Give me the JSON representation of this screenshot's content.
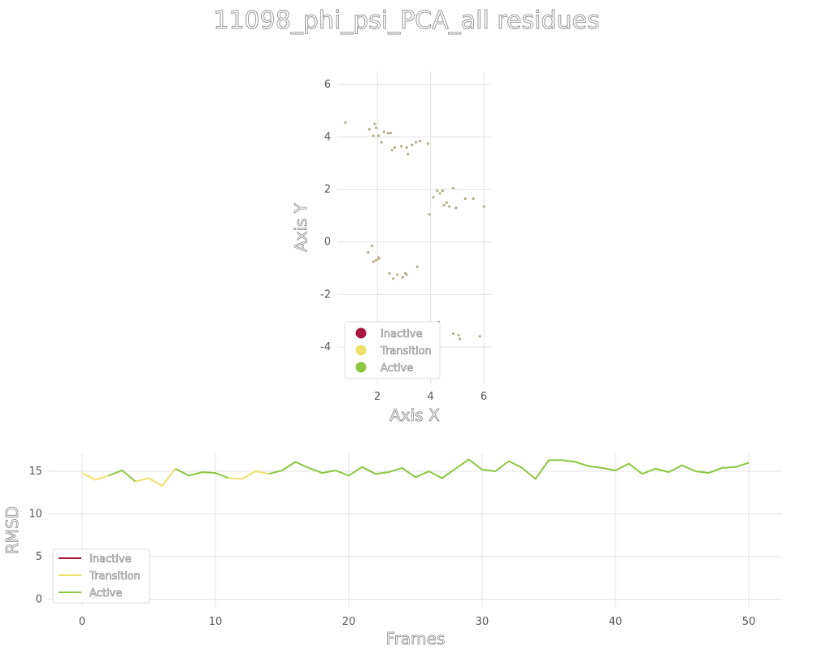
{
  "figure": {
    "title": "11098_phi_psi_PCA_all residues"
  },
  "colors": {
    "inactive": "#a8173f",
    "transition": "#ece06a",
    "active": "#8dc63f",
    "scatter_point": "#b7ab88"
  },
  "chart_data": [
    {
      "type": "scatter",
      "title": "",
      "xlabel": "Axis X",
      "ylabel": "Axis Y",
      "xlim": [
        0.5,
        6.3
      ],
      "ylim": [
        -5.4,
        6.5
      ],
      "xticks": [
        2,
        4,
        6
      ],
      "yticks": [
        -4,
        -2,
        0,
        2,
        4,
        6
      ],
      "grid": true,
      "legend": {
        "position": "lower-left",
        "entries": [
          "Inactive",
          "Transition",
          "Active"
        ]
      },
      "points": [
        [
          0.8,
          4.55
        ],
        [
          1.7,
          4.3
        ],
        [
          1.85,
          4.05
        ],
        [
          1.9,
          4.5
        ],
        [
          1.95,
          4.35
        ],
        [
          2.05,
          4.05
        ],
        [
          2.15,
          3.8
        ],
        [
          2.25,
          4.2
        ],
        [
          2.4,
          4.15
        ],
        [
          2.5,
          4.15
        ],
        [
          2.55,
          3.5
        ],
        [
          2.65,
          3.6
        ],
        [
          2.9,
          3.65
        ],
        [
          3.1,
          3.6
        ],
        [
          3.15,
          3.35
        ],
        [
          3.3,
          3.7
        ],
        [
          3.45,
          3.8
        ],
        [
          3.6,
          3.85
        ],
        [
          3.9,
          3.75
        ],
        [
          3.95,
          1.05
        ],
        [
          4.1,
          1.7
        ],
        [
          4.25,
          1.95
        ],
        [
          4.35,
          1.85
        ],
        [
          4.45,
          1.95
        ],
        [
          4.5,
          1.4
        ],
        [
          4.6,
          1.5
        ],
        [
          4.7,
          1.35
        ],
        [
          4.85,
          2.05
        ],
        [
          4.95,
          1.3
        ],
        [
          5.3,
          1.65
        ],
        [
          5.6,
          1.65
        ],
        [
          6.0,
          1.35
        ],
        [
          1.65,
          -0.4
        ],
        [
          1.8,
          -0.15
        ],
        [
          1.85,
          -0.75
        ],
        [
          1.95,
          -0.7
        ],
        [
          2.05,
          -0.6
        ],
        [
          2.05,
          -0.65
        ],
        [
          2.45,
          -1.2
        ],
        [
          2.6,
          -1.4
        ],
        [
          2.75,
          -1.25
        ],
        [
          2.95,
          -1.35
        ],
        [
          3.05,
          -1.2
        ],
        [
          3.1,
          -1.25
        ],
        [
          3.5,
          -0.95
        ],
        [
          4.05,
          -3.1
        ],
        [
          4.3,
          -3.05
        ],
        [
          4.85,
          -3.5
        ],
        [
          5.05,
          -3.55
        ],
        [
          5.1,
          -3.7
        ],
        [
          5.85,
          -3.6
        ]
      ]
    },
    {
      "type": "line",
      "title": "",
      "xlabel": "Frames",
      "ylabel": "RMSD",
      "xlim": [
        -2.5,
        52.5
      ],
      "ylim": [
        -0.9,
        17.1
      ],
      "xticks": [
        0,
        10,
        20,
        30,
        40,
        50
      ],
      "yticks": [
        0,
        5,
        10,
        15
      ],
      "grid": true,
      "legend": {
        "position": "lower-left",
        "entries": [
          "Inactive",
          "Transition",
          "Active"
        ]
      },
      "x": [
        0,
        1,
        2,
        3,
        4,
        5,
        6,
        7,
        8,
        9,
        10,
        11,
        12,
        13,
        14,
        15,
        16,
        17,
        18,
        19,
        20,
        21,
        22,
        23,
        24,
        25,
        26,
        27,
        28,
        29,
        30,
        31,
        32,
        33,
        34,
        35,
        36,
        37,
        38,
        39,
        40,
        41,
        42,
        43,
        44,
        45,
        46,
        47,
        48,
        49,
        50
      ],
      "y": [
        14.8,
        14.0,
        14.5,
        15.1,
        13.8,
        14.2,
        13.3,
        15.3,
        14.5,
        14.9,
        14.8,
        14.2,
        14.1,
        15.0,
        14.7,
        15.1,
        16.1,
        15.4,
        14.8,
        15.1,
        14.5,
        15.5,
        14.7,
        14.9,
        15.4,
        14.3,
        15.0,
        14.2,
        15.3,
        16.4,
        15.2,
        15.0,
        16.2,
        15.4,
        14.1,
        16.3,
        16.3,
        16.1,
        15.6,
        15.4,
        15.1,
        15.9,
        14.7,
        15.3,
        14.9,
        15.7,
        15.0,
        14.8,
        15.4,
        15.5,
        16.0
      ],
      "series": [
        {
          "name": "Inactive",
          "segments": []
        },
        {
          "name": "Transition",
          "segments": [
            [
              0,
              2
            ],
            [
              4,
              7
            ],
            [
              11,
              14
            ]
          ]
        },
        {
          "name": "Active",
          "segments": [
            [
              2,
              4
            ],
            [
              7,
              11
            ],
            [
              14,
              50
            ]
          ]
        }
      ]
    }
  ]
}
